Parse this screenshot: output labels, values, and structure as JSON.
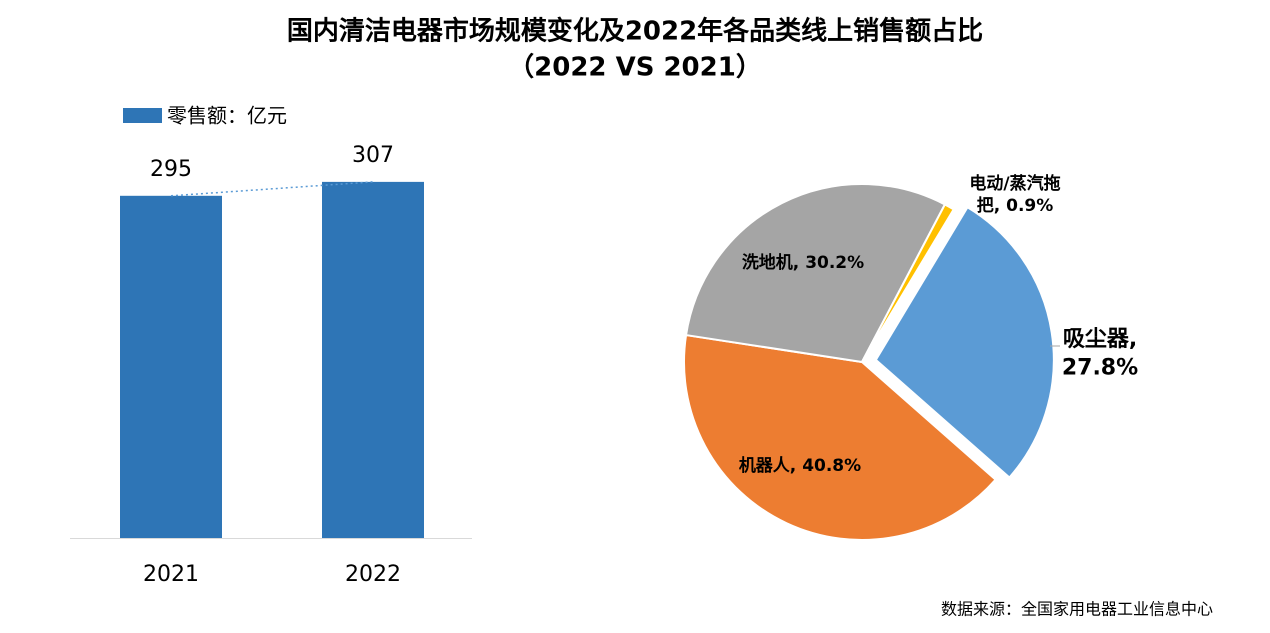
{
  "title": [
    "国内清洁电器市场规模变化及2022年各品类线上销售额占比",
    "（2022 VS 2021）"
  ],
  "source": "数据来源：全国家用电器工业信息中心",
  "chart_data": [
    {
      "type": "bar",
      "categories": [
        "2021",
        "2022"
      ],
      "series": [
        {
          "name": "零售额：亿元",
          "color": "#2e75b6",
          "values": [
            295,
            307
          ]
        }
      ],
      "ylim": [
        0,
        350
      ],
      "trend_line": true
    },
    {
      "type": "pie",
      "values": [
        27.8,
        40.8,
        30.2,
        0.9
      ],
      "value_labels": [
        "吸尘器,\n27.8%",
        "机器人, 40.8%",
        "洗地机, 30.2%",
        "电动/蒸汽拖\n把, 0.9%"
      ],
      "colors": [
        "#5b9bd5",
        "#ed7d31",
        "#a5a5a5",
        "#ffc000"
      ],
      "exploded": [
        0
      ]
    }
  ]
}
